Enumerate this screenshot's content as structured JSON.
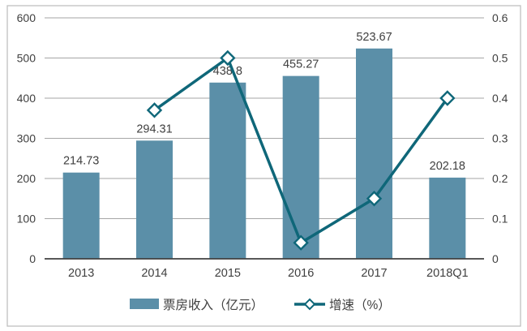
{
  "chart_data": {
    "type": "combo",
    "title": "",
    "categories": [
      "2013",
      "2014",
      "2015",
      "2016",
      "2017",
      "2018Q1"
    ],
    "series": [
      {
        "name": "票房收入（亿元）",
        "type": "bar",
        "axis": "left",
        "values": [
          214.73,
          294.31,
          438.8,
          455.27,
          523.67,
          202.18
        ],
        "data_labels": [
          "214.73",
          "294.31",
          "438.8",
          "455.27",
          "523.67",
          "202.18"
        ],
        "color": "#5b8fa8"
      },
      {
        "name": "增速（%）",
        "type": "line",
        "axis": "right",
        "values": [
          null,
          0.37,
          0.5,
          0.04,
          0.15,
          0.4
        ],
        "color": "#0f6779",
        "marker": "diamond",
        "marker_fill": "#ffffff"
      }
    ],
    "left_axis": {
      "min": 0,
      "max": 600,
      "step": 100,
      "tick_labels": [
        "600",
        "500",
        "400",
        "300",
        "200",
        "100",
        "0"
      ]
    },
    "right_axis": {
      "min": 0,
      "max": 0.6,
      "step": 0.1,
      "tick_labels": [
        "0.6",
        "0.5",
        "0.4",
        "0.3",
        "0.2",
        "0.1",
        "0"
      ]
    },
    "grid": true,
    "legend_position": "bottom",
    "colors": {
      "gridline": "#a6a6a6",
      "axis_line": "#404040",
      "text": "#404040",
      "border": "#bfbfbf",
      "background": "#ffffff"
    }
  }
}
